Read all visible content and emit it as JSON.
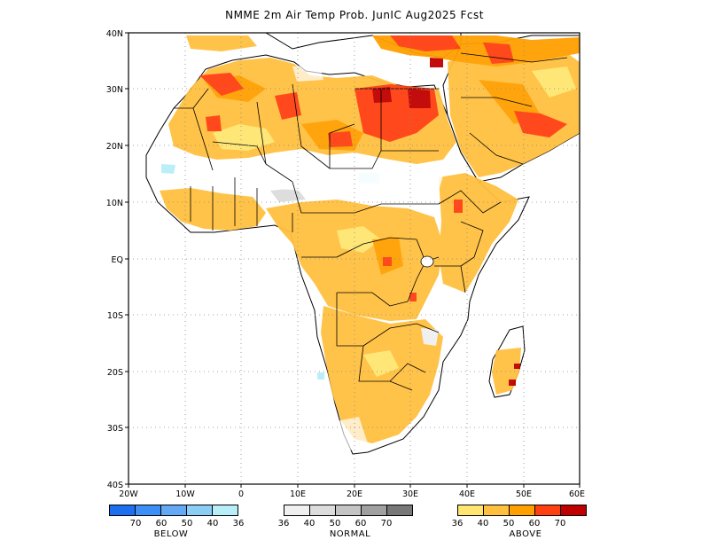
{
  "title": "NMME 2m Air Temp Prob. JunIC  Aug2025 Fcst",
  "axes": {
    "lat_labels": [
      "40N",
      "30N",
      "20N",
      "10N",
      "EQ",
      "10S",
      "20S",
      "30S",
      "40S"
    ],
    "lon_labels": [
      "20W",
      "10W",
      "0",
      "10E",
      "20E",
      "30E",
      "40E",
      "50E",
      "60E"
    ]
  },
  "legend": {
    "below": {
      "title": "BELOW",
      "ticks": [
        "70",
        "60",
        "50",
        "40",
        "36"
      ],
      "colors": [
        "#1e6ff0",
        "#3c8ff5",
        "#64a8f5",
        "#8ccdf5",
        "#b8eef8"
      ]
    },
    "normal": {
      "title": "NORMAL",
      "ticks": [
        "36",
        "40",
        "50",
        "60",
        "70"
      ],
      "colors": [
        "#f0f0f0",
        "#dcdcdc",
        "#c4c4c4",
        "#a0a0a0",
        "#787878"
      ]
    },
    "above": {
      "title": "ABOVE",
      "ticks": [
        "36",
        "40",
        "50",
        "60",
        "70"
      ],
      "colors": [
        "#ffe670",
        "#ffc040",
        "#ffa000",
        "#ff4010",
        "#c00000"
      ]
    }
  }
}
